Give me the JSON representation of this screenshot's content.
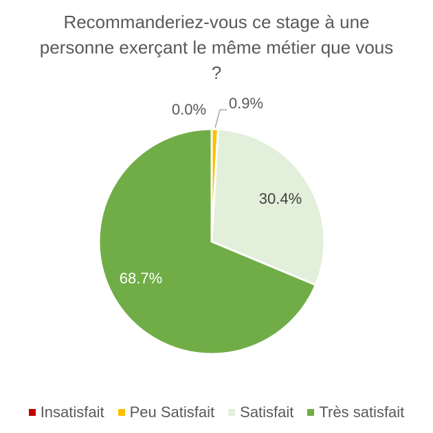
{
  "chart_data": {
    "type": "pie",
    "title": [
      "Recommanderiez-vous ce stage à une",
      "personne exerçant le même métier que vous",
      "?"
    ],
    "categories": [
      "Insatisfait",
      "Peu Satisfait",
      "Satisfait",
      "Très satisfait"
    ],
    "values": [
      0.0,
      0.9,
      30.4,
      68.7
    ],
    "data_labels": [
      "0.0%",
      "0.9%",
      "30.4%",
      "68.7%"
    ],
    "colors": [
      "#c00000",
      "#ffc000",
      "#e2efda",
      "#70ad47"
    ],
    "legend_position": "bottom"
  }
}
